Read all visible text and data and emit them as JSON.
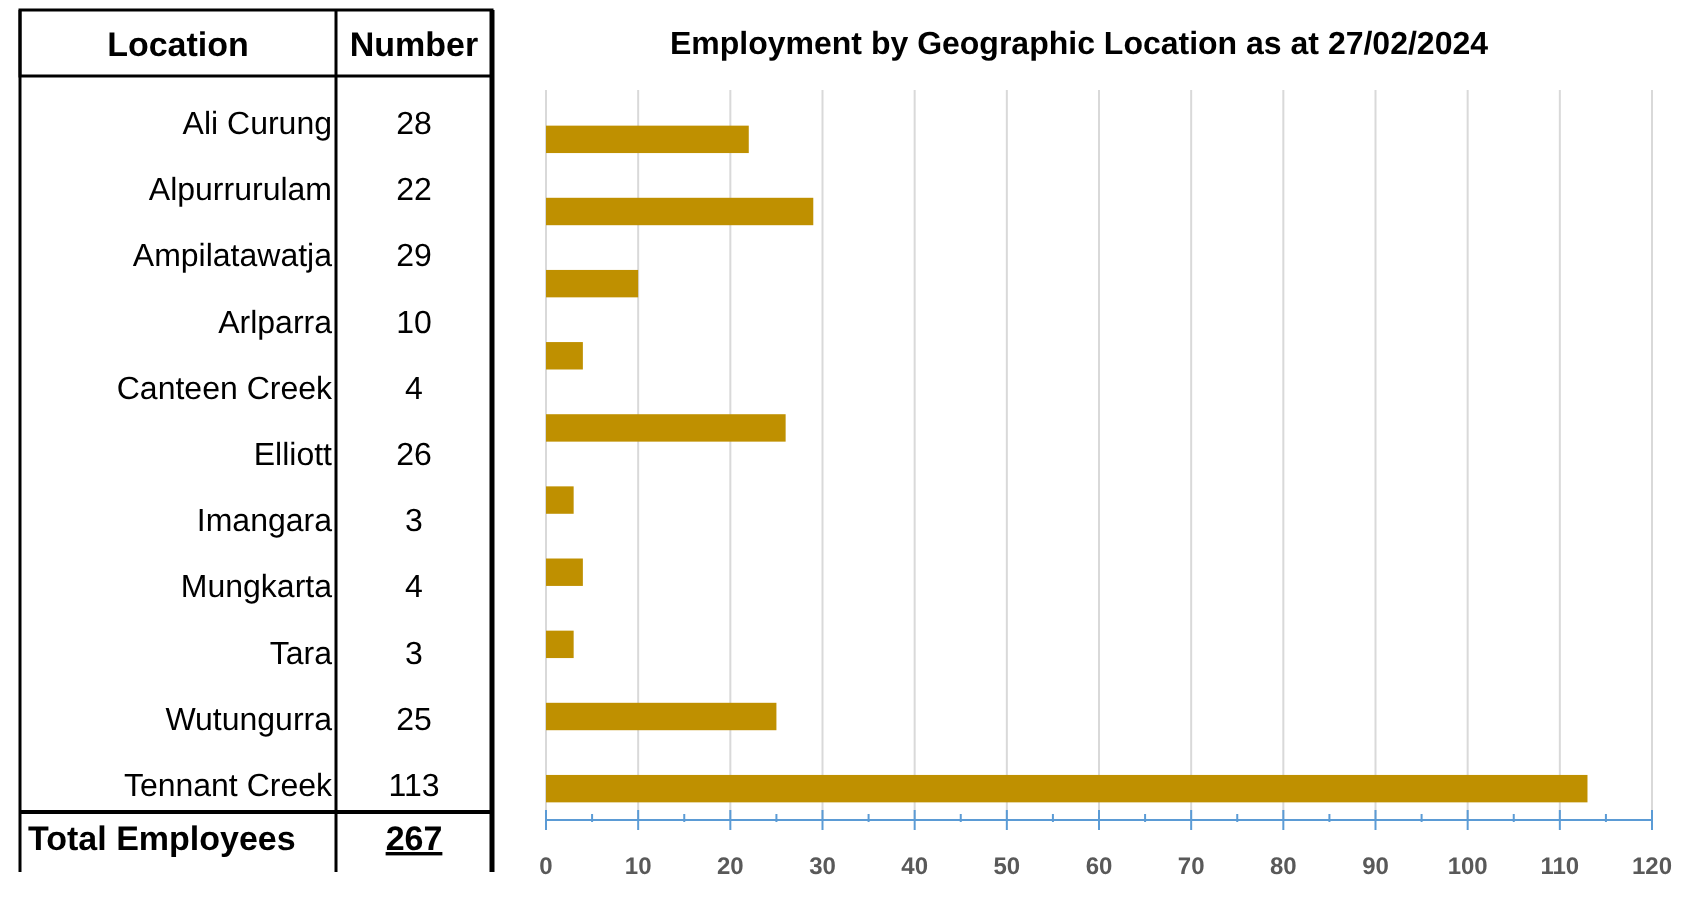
{
  "chart_data": [
    {
      "type": "other",
      "categories": [
        "Ali Curung",
        "Alpurrurulam",
        "Ampilatawatja",
        "Arlparra",
        "Canteen Creek",
        "Elliott",
        "Imangara",
        "Mungkarta",
        "Tara",
        "Wutungurra",
        "Tennant Creek"
      ],
      "values": [
        28,
        22,
        29,
        10,
        4,
        26,
        3,
        4,
        3,
        25,
        113
      ],
      "data_labels": true,
      "annotations": [
        "Location",
        "Number",
        "Total Employees",
        "267"
      ]
    },
    {
      "type": "bar",
      "orientation": "horizontal",
      "title": "Employment by Geographic Location as at 27/02/2024",
      "categories": [
        null,
        null,
        null,
        null,
        null,
        null,
        null,
        null,
        null,
        null
      ],
      "values": [
        22,
        29,
        10,
        4,
        26,
        3,
        4,
        3,
        25,
        113
      ],
      "color": "#bf9000",
      "xlim": [
        0,
        120
      ],
      "xticks": [
        0,
        {
          "value": 5,
          "label": null
        },
        10,
        {
          "value": 15,
          "label": null
        },
        20,
        {
          "value": 25,
          "label": null
        },
        30,
        {
          "value": 35,
          "label": null
        },
        40,
        {
          "value": 45,
          "label": null
        },
        50,
        {
          "value": 55,
          "label": null
        },
        60,
        {
          "value": 65,
          "label": null
        },
        70,
        {
          "value": 75,
          "label": null
        },
        80,
        {
          "value": 85,
          "label": null
        },
        90,
        {
          "value": 95,
          "label": null
        },
        100,
        {
          "value": 105,
          "label": null
        },
        110,
        {
          "value": 115,
          "label": null
        },
        120
      ],
      "grid": "x"
    }
  ]
}
